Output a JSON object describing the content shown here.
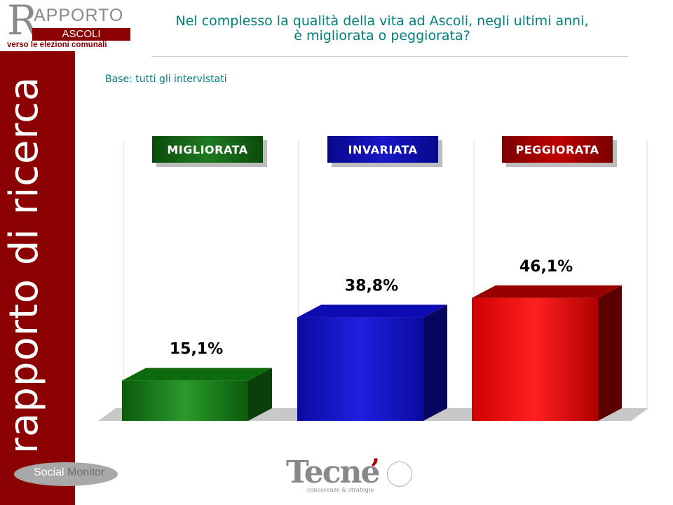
{
  "header": {
    "logo_r": "R",
    "logo_apporto": "APPORTO",
    "logo_ascoli": "ASCOLI",
    "logo_subtitle": "verso le elezioni comunali",
    "title_line1": "Nel complesso la qualità della vita ad Ascoli, negli ultimi anni,",
    "title_line2": "è migliorata o peggiorata?",
    "base_note": "Base: tutti gli intervistati"
  },
  "sidebar": {
    "label": "rapporto di ricerca"
  },
  "footer": {
    "social_word1": "Social",
    "social_word2": "Monitor",
    "tecne_word": "Tecne",
    "tecne_mark": "’",
    "tecne_tagline": "conoscenze & strategie"
  },
  "colors": {
    "brand": "#8b0000",
    "title": "#00807a",
    "migliorata": "#1f7a1f",
    "invariata": "#1010c0",
    "peggiorata": "#e00000"
  },
  "chart_data": {
    "type": "bar",
    "categories": [
      "MIGLIORATA",
      "INVARIATA",
      "PEGGIORATA"
    ],
    "values": [
      15.1,
      38.8,
      46.1
    ],
    "value_labels": [
      "15,1%",
      "38,8%",
      "46,1%"
    ],
    "unit": "%",
    "ylim": [
      0,
      100
    ],
    "grid": false,
    "series_colors": [
      "#1f7a1f",
      "#1010c0",
      "#e00000"
    ]
  }
}
